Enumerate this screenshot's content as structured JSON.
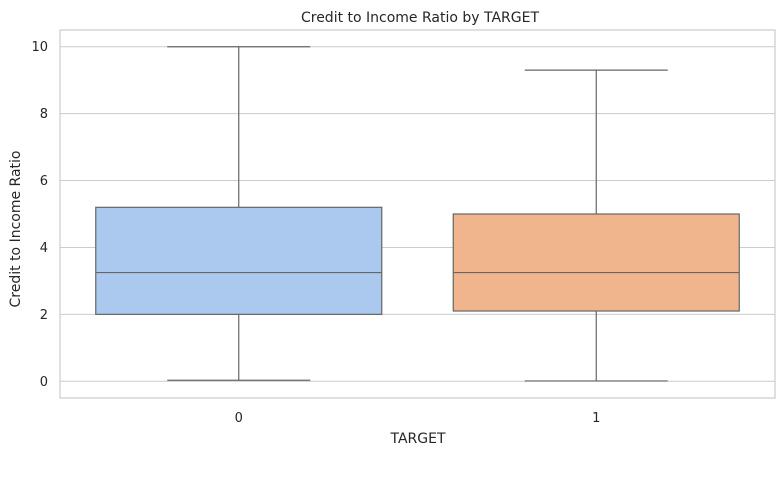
{
  "chart_data": {
    "type": "box",
    "title": "Credit to Income Ratio by TARGET",
    "xlabel": "TARGET",
    "ylabel": "Credit to Income Ratio",
    "categories": [
      "0",
      "1"
    ],
    "boxes": [
      {
        "category": "0",
        "whisker_low": 0.03,
        "q1": 2.0,
        "median": 3.25,
        "q3": 5.2,
        "whisker_high": 10.0,
        "color": "#abc9ee"
      },
      {
        "category": "1",
        "whisker_low": 0.01,
        "q1": 2.1,
        "median": 3.25,
        "q3": 5.0,
        "whisker_high": 9.3,
        "color": "#f1b58e"
      }
    ],
    "ylim": [
      -0.5,
      10.5
    ],
    "yticks": [
      0,
      2,
      4,
      6,
      8,
      10
    ],
    "grid": true,
    "colors": {
      "grid": "#cccccc",
      "line": "#666666",
      "frame": "#cccccc"
    }
  }
}
